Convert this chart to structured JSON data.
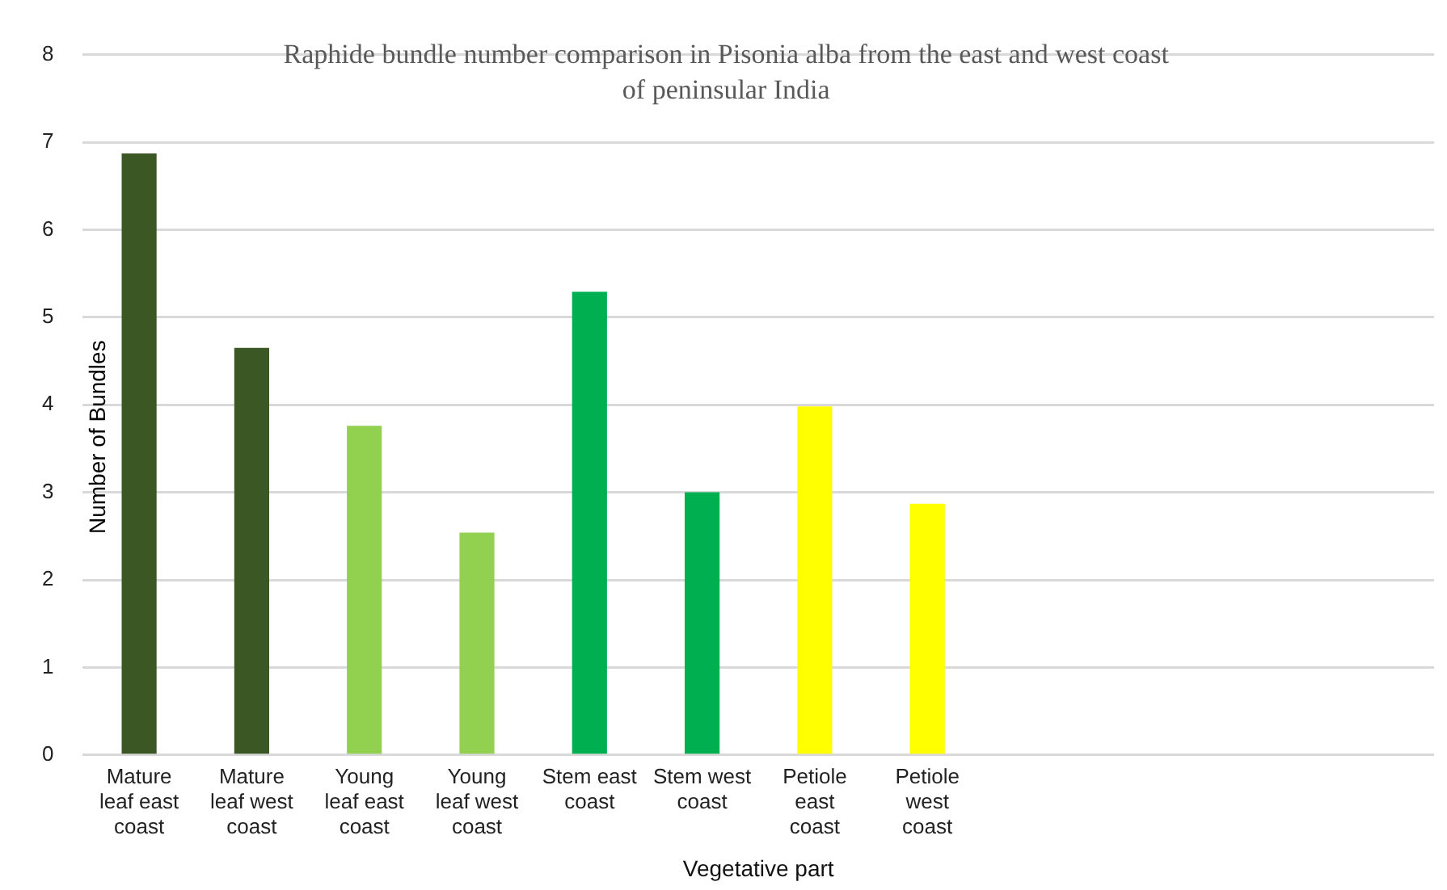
{
  "chart_data": {
    "type": "bar",
    "title": "Raphide bundle number comparison in Pisonia alba from the east and west coast of peninsular India",
    "xlabel": "Vegetative part",
    "ylabel": "Number of Bundles",
    "categories": [
      "Mature leaf east coast",
      "Mature leaf west coast",
      "Young leaf east coast",
      "Young leaf west coast",
      "Stem east coast",
      "Stem west coast",
      "Petiole east coast",
      "Petiole west coast",
      null,
      null,
      null,
      null
    ],
    "values": [
      6.87,
      4.65,
      3.76,
      2.54,
      5.29,
      3.0,
      3.98,
      2.87,
      null,
      null,
      null,
      null
    ],
    "colors": [
      "#3a5724",
      "#3a5724",
      "#92d050",
      "#92d050",
      "#00b050",
      "#00b050",
      "#ffff00",
      "#ffff00",
      null,
      null,
      null,
      null
    ],
    "ylim": [
      0,
      8
    ],
    "yticks": [
      0,
      1,
      2,
      3,
      4,
      5,
      6,
      7,
      8
    ],
    "grid": "y",
    "legend": false
  }
}
